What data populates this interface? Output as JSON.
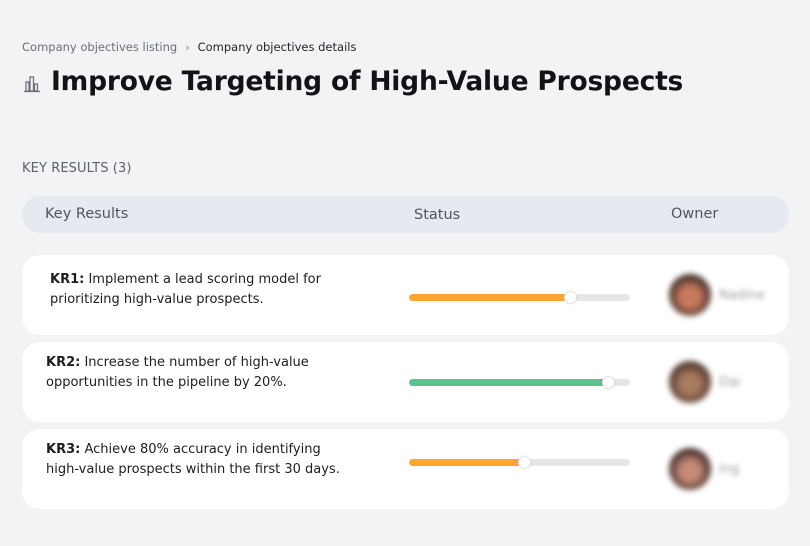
{
  "breadcrumb": {
    "items": [
      {
        "label": "Company objectives listing",
        "current": false
      },
      {
        "label": "Company objectives details",
        "current": true
      }
    ],
    "separator": "›"
  },
  "objective": {
    "icon": "building-icon",
    "title": "Improve Targeting of High-Value Prospects"
  },
  "key_results_section": {
    "label": "KEY RESULTS (3)",
    "count": 3
  },
  "table": {
    "columns": [
      "Key Results",
      "Status",
      "Owner"
    ]
  },
  "key_results": [
    {
      "id": "KR1:",
      "text": " Implement a lead scoring model for prioritizing high-value prospects.",
      "progress": 73,
      "progress_color": "#ffa630",
      "owner_name": "Nadine",
      "avatar_colors": [
        "#3b2a26",
        "#c87a5e"
      ]
    },
    {
      "id": "KR2:",
      "text": " Increase the number of high-value opportunities in the pipeline by 20%.",
      "progress": 90,
      "progress_color": "#58c48e",
      "owner_name": "Dai",
      "avatar_colors": [
        "#4a3227",
        "#a87a60"
      ]
    },
    {
      "id": "KR3:",
      "text": " Achieve 80% accuracy in identifying high-value prospects within the first 30 days.",
      "progress": 52,
      "progress_color": "#ffa630",
      "owner_name": "Ing",
      "avatar_colors": [
        "#3a2622",
        "#c58a78"
      ]
    }
  ],
  "colors": {
    "background": "#f2f3f5",
    "card": "#ffffff",
    "header_bg": "#e6eaf0",
    "track": "#e6e6e6",
    "orange": "#ffa630",
    "green": "#58c48e"
  }
}
